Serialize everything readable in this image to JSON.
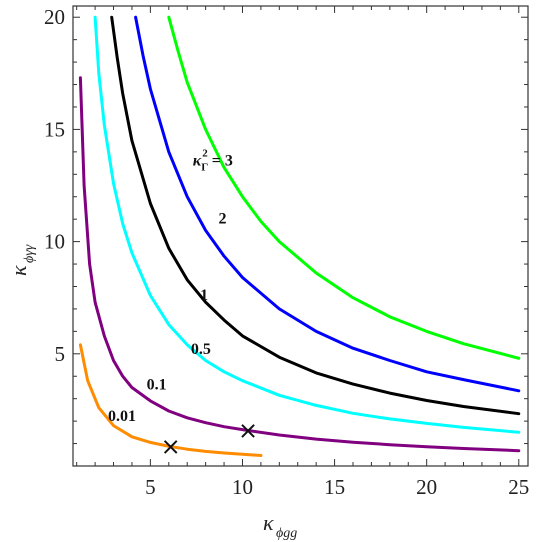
{
  "chart_data": {
    "type": "line",
    "title": "",
    "xlabel": {
      "symbol": "κ",
      "subscript": "ϕgg"
    },
    "ylabel": {
      "symbol": "κ",
      "subscript": "ϕγγ"
    },
    "xlim": [
      0.8,
      25.5
    ],
    "ylim": [
      0,
      20.5
    ],
    "x_ticks": [
      "5",
      "10",
      "15",
      "20",
      "25"
    ],
    "y_ticks": [
      "5",
      "10",
      "15",
      "20"
    ],
    "grid": false,
    "series": [
      {
        "name": "0.01",
        "color": "#ff8c00",
        "points": [
          [
            1.2,
            5.4
          ],
          [
            1.6,
            3.8
          ],
          [
            2.2,
            2.6
          ],
          [
            3.0,
            1.8
          ],
          [
            4.0,
            1.3
          ],
          [
            5.0,
            1.05
          ],
          [
            6.0,
            0.88
          ],
          [
            7.0,
            0.75
          ],
          [
            8.0,
            0.65
          ],
          [
            9.0,
            0.58
          ],
          [
            10.0,
            0.52
          ],
          [
            11.0,
            0.47
          ]
        ]
      },
      {
        "name": "0.1",
        "color": "#800080",
        "points": [
          [
            1.2,
            17.3
          ],
          [
            1.4,
            12.5
          ],
          [
            1.7,
            9.0
          ],
          [
            2.0,
            7.3
          ],
          [
            2.5,
            5.8
          ],
          [
            3.0,
            4.7
          ],
          [
            3.5,
            4.0
          ],
          [
            4.0,
            3.5
          ],
          [
            5.0,
            2.9
          ],
          [
            6.0,
            2.45
          ],
          [
            7.0,
            2.15
          ],
          [
            8.0,
            1.93
          ],
          [
            9.0,
            1.75
          ],
          [
            10.3,
            1.58
          ],
          [
            12.0,
            1.38
          ],
          [
            14.0,
            1.2
          ],
          [
            16.0,
            1.06
          ],
          [
            18.0,
            0.95
          ],
          [
            20.0,
            0.86
          ],
          [
            22.0,
            0.78
          ],
          [
            25.0,
            0.68
          ]
        ]
      },
      {
        "name": "0.5",
        "color": "#00ffff",
        "points": [
          [
            2.0,
            20.0
          ],
          [
            2.2,
            17.5
          ],
          [
            2.5,
            15.2
          ],
          [
            3.0,
            12.6
          ],
          [
            3.5,
            10.8
          ],
          [
            4.0,
            9.5
          ],
          [
            5.0,
            7.6
          ],
          [
            6.0,
            6.3
          ],
          [
            7.0,
            5.4
          ],
          [
            8.0,
            4.7
          ],
          [
            9.0,
            4.2
          ],
          [
            10.0,
            3.8
          ],
          [
            12.0,
            3.15
          ],
          [
            14.0,
            2.7
          ],
          [
            16.0,
            2.35
          ],
          [
            18.0,
            2.1
          ],
          [
            20.0,
            1.9
          ],
          [
            22.0,
            1.72
          ],
          [
            25.0,
            1.5
          ]
        ]
      },
      {
        "name": "1",
        "color": "#000000",
        "points": [
          [
            2.9,
            20.0
          ],
          [
            3.2,
            18.2
          ],
          [
            3.5,
            16.6
          ],
          [
            4.0,
            14.5
          ],
          [
            5.0,
            11.7
          ],
          [
            6.0,
            9.7
          ],
          [
            7.0,
            8.3
          ],
          [
            8.0,
            7.3
          ],
          [
            9.0,
            6.5
          ],
          [
            10.0,
            5.8
          ],
          [
            12.0,
            4.85
          ],
          [
            14.0,
            4.15
          ],
          [
            16.0,
            3.65
          ],
          [
            18.0,
            3.25
          ],
          [
            20.0,
            2.92
          ],
          [
            22.0,
            2.65
          ],
          [
            25.0,
            2.33
          ]
        ]
      },
      {
        "name": "2",
        "color": "#0000ff",
        "points": [
          [
            4.2,
            20.0
          ],
          [
            4.6,
            18.3
          ],
          [
            5.0,
            16.8
          ],
          [
            6.0,
            14.0
          ],
          [
            7.0,
            12.0
          ],
          [
            8.0,
            10.5
          ],
          [
            9.0,
            9.35
          ],
          [
            10.0,
            8.4
          ],
          [
            12.0,
            7.0
          ],
          [
            14.0,
            6.0
          ],
          [
            16.0,
            5.25
          ],
          [
            18.0,
            4.7
          ],
          [
            20.0,
            4.2
          ],
          [
            22.0,
            3.85
          ],
          [
            25.0,
            3.35
          ]
        ]
      },
      {
        "name": "κ_Γ^2 = 3",
        "color": "#00ff00",
        "points": [
          [
            6.0,
            20.0
          ],
          [
            6.5,
            18.5
          ],
          [
            7.0,
            17.1
          ],
          [
            8.0,
            15.0
          ],
          [
            9.0,
            13.3
          ],
          [
            10.0,
            12.0
          ],
          [
            11.0,
            10.9
          ],
          [
            12.0,
            10.0
          ],
          [
            14.0,
            8.6
          ],
          [
            16.0,
            7.5
          ],
          [
            18.0,
            6.65
          ],
          [
            20.0,
            6.0
          ],
          [
            22.0,
            5.45
          ],
          [
            25.0,
            4.8
          ]
        ]
      }
    ],
    "markers": [
      {
        "name": "cross-marker-1",
        "x": 6.1,
        "y": 0.88,
        "symbol": "×"
      },
      {
        "name": "cross-marker-2",
        "x": 10.3,
        "y": 1.58,
        "symbol": "×"
      }
    ],
    "annotations": [
      {
        "name": "label-3",
        "text_main": "κ",
        "text_sub": "Γ",
        "text_sup": "2",
        "text_rest": " = 3",
        "x": 7.3,
        "y": 13.4
      },
      {
        "name": "label-2",
        "text": "2",
        "x": 8.7,
        "y": 10.8
      },
      {
        "name": "label-1",
        "text": "1",
        "x": 7.7,
        "y": 7.4
      },
      {
        "name": "label-0.5",
        "text": "0.5",
        "x": 7.2,
        "y": 5.0
      },
      {
        "name": "label-0.1",
        "text": "0.1",
        "x": 4.8,
        "y": 3.4
      },
      {
        "name": "label-0.01",
        "text": "0.01",
        "x": 2.7,
        "y": 2.0
      }
    ]
  }
}
